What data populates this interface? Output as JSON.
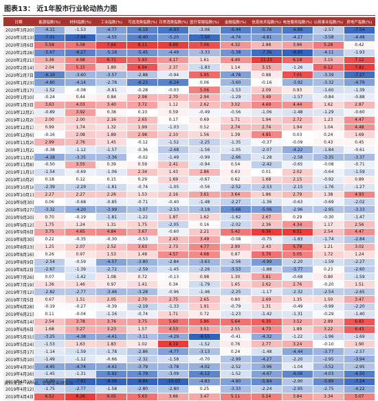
{
  "header": {
    "title": "图表13： 近1年股市行业轮动热力图"
  },
  "table": {
    "columns": [
      "日期",
      "能源指数(%)",
      "材料指数(%)",
      "工业指数(%)",
      "可选消费指数(%)",
      "日常消费指数(%)",
      "医疗保健指数(%)",
      "金融指数(%)",
      "信息技术指数(%)",
      "电信服务指数(%)",
      "公用事业指数(%)",
      "房地产指数(%)"
    ],
    "rows": [
      [
        "2020年3月20日",
        "-4.11",
        "-1.53",
        "-4.77",
        "-6.19",
        "-6.93",
        "-3.06",
        "-6.44",
        "-5.76",
        "-6.88",
        "-2.57",
        "-7.54"
      ],
      [
        "2020年3月13日",
        "-7.01",
        "-7.94",
        "-4.55",
        "-6.40",
        "-5.20",
        "-7.50",
        "-4.74",
        "-4.81",
        "-4.27",
        "-3.58",
        "-4.48"
      ],
      [
        "2020年3月6日",
        "5.58",
        "5.58",
        "7.64",
        "8.11",
        "8.89",
        "7.06",
        "4.32",
        "2.88",
        "3.96",
        "5.28",
        "0.42"
      ],
      [
        "2020年2月28日",
        "-5.67",
        "-6.27",
        "-5.18",
        "-5.45",
        "-4.49",
        "-3.33",
        "-5.38",
        "-7.36",
        "-8.85",
        "-4.11",
        "-1.93"
      ],
      [
        "2020年2月21日",
        "3.36",
        "4.98",
        "6.71",
        "5.93",
        "4.17",
        "1.61",
        "4.40",
        "11.15",
        "6.18",
        "3.15",
        "7.12"
      ],
      [
        "2020年2月14日",
        "2.04",
        "5.15",
        "1.89",
        "6.94",
        "2.37",
        "-1.83",
        "1.14",
        "3.15",
        "-1.26",
        "6.12",
        "7.82"
      ],
      [
        "2020年2月7日",
        "-6.19",
        "-3.60",
        "-3.57",
        "-2.88",
        "-0.94",
        "5.95",
        "-4.78",
        "0.88",
        "7.05",
        "-3.39",
        "-7.27"
      ],
      [
        "2020年1月23日",
        "-4.80",
        "-4.14",
        "-2.78",
        "-6.23",
        "-6.24",
        "0.06",
        "-3.60",
        "-0.16",
        "-3.92",
        "-3.32",
        "-4.79"
      ],
      [
        "2020年1月17日",
        "-1.52",
        "-0.08",
        "-0.81",
        "-0.28",
        "-0.03",
        "5.06",
        "-1.53",
        "2.09",
        "0.93",
        "-1.60",
        "-1.39"
      ],
      [
        "2020年1月10日",
        "-0.24",
        "0.44",
        "0.84",
        "2.98",
        "2.70",
        "2.94",
        "-1.29",
        "3.49",
        "-1.57",
        "-0.84",
        "-0.88"
      ],
      [
        "2020年1月3日",
        "3.63",
        "4.03",
        "3.40",
        "3.72",
        "1.12",
        "2.62",
        "3.02",
        "4.69",
        "4.44",
        "1.62",
        "2.87"
      ],
      [
        "2019年12月27日",
        "-0.89",
        "3.92",
        "0.38",
        "0.10",
        "0.59",
        "-0.49",
        "-0.56",
        "-1.06",
        "-1.48",
        "-1.29",
        "-0.60"
      ],
      [
        "2019年12月20日",
        "2.00",
        "2.00",
        "2.16",
        "2.65",
        "0.17",
        "0.69",
        "1.71",
        "1.94",
        "2.72",
        "1.23",
        "4.47"
      ],
      [
        "2019年12月13日",
        "0.99",
        "1.74",
        "1.32",
        "1.99",
        "-1.03",
        "0.52",
        "2.74",
        "2.74",
        "1.94",
        "1.04",
        "4.48"
      ],
      [
        "2019年12月6日",
        "-0.16",
        "2.08",
        "1.89",
        "2.98",
        "2.10",
        "1.56",
        "1.39",
        "4.85",
        "0.03",
        "0.24",
        "1.69"
      ],
      [
        "2019年11月29日",
        "2.99",
        "2.76",
        "1.45",
        "-0.12",
        "-1.52",
        "-2.25",
        "-1.35",
        "-0.37",
        "-0.09",
        "0.43",
        "0.45"
      ],
      [
        "2019年11月22日",
        "-0.38",
        "-1.12",
        "-1.57",
        "-0.36",
        "-2.68",
        "-1.56",
        "-1.05",
        "-2.07",
        "-4.22",
        "-1.84",
        "-0.61"
      ],
      [
        "2019年11月15日",
        "-4.18",
        "-3.35",
        "-3.36",
        "-0.02",
        "-1.49",
        "-0.99",
        "-2.66",
        "-1.28",
        "-2.58",
        "-3.35",
        "-3.37"
      ],
      [
        "2019年11月8日",
        "-0.50",
        "3.55",
        "0.39",
        "0.59",
        "2.41",
        "-0.94",
        "0.54",
        "-2.42",
        "-0.65",
        "-0.08",
        "-0.71"
      ],
      [
        "2019年11月1日",
        "-1.54",
        "-0.69",
        "-1.06",
        "2.34",
        "1.43",
        "2.86",
        "0.63",
        "0.01",
        "2.02",
        "-0.64",
        "-1.59"
      ],
      [
        "2019年10月25日",
        "0.18",
        "0.12",
        "0.15",
        "0.29",
        "1.69",
        "-0.67",
        "0.62",
        "1.68",
        "2.15",
        "-0.92",
        "0.89"
      ],
      [
        "2019年10月18日",
        "-2.39",
        "-2.29",
        "-1.81",
        "-0.74",
        "-1.05",
        "-0.56",
        "-2.52",
        "-2.53",
        "-2.15",
        "-1.76",
        "-1.27"
      ],
      [
        "2019年10月11日",
        "2.27",
        "2.27",
        "2.26",
        "1.53",
        "2.16",
        "3.61",
        "3.64",
        "1.86",
        "2.79",
        "1.38",
        "4.93"
      ],
      [
        "2019年9月30日",
        "0.06",
        "-0.68",
        "-0.85",
        "-0.71",
        "-0.40",
        "-1.48",
        "-2.27",
        "-1.36",
        "-0.63",
        "-0.69",
        "-2.02"
      ],
      [
        "2019年9月27日",
        "-3.32",
        "-4.20",
        "-3.99",
        "-3.07",
        "-2.53",
        "-3.18",
        "-5.66",
        "-5.06",
        "-2.96",
        "-2.95",
        "-3.33"
      ],
      [
        "2019年9月20日",
        "0.70",
        "-0.19",
        "-1.81",
        "-1.22",
        "1.87",
        "1.62",
        "-1.62",
        "2.67",
        "0.29",
        "-0.30",
        "-1.47"
      ],
      [
        "2019年9月12日",
        "1.75",
        "1.24",
        "1.31",
        "1.75",
        "-2.05",
        "0.16",
        "-2.02",
        "2.36",
        "4.34",
        "1.17",
        "2.56"
      ],
      [
        "2019年9月6日",
        "3.75",
        "4.65",
        "4.84",
        "3.67",
        "-0.60",
        "2.21",
        "5.42",
        "9.36",
        "8.51",
        "2.54",
        "4.47"
      ],
      [
        "2019年8月30日",
        "0.22",
        "-0.35",
        "-0.30",
        "-0.53",
        "2.43",
        "3.49",
        "-0.08",
        "-0.75",
        "-1.83",
        "-1.74",
        "-2.84"
      ],
      [
        "2019年8月23日",
        "1.25",
        "2.07",
        "2.52",
        "3.63",
        "2.73",
        "4.77",
        "2.90",
        "2.43",
        "5.79",
        "1.21",
        "3.02"
      ],
      [
        "2019年8月16日",
        "0.26",
        "0.97",
        "1.53",
        "1.48",
        "4.57",
        "4.68",
        "0.87",
        "5.70",
        "5.05",
        "1.72",
        "1.24"
      ],
      [
        "2019年8月9日",
        "-2.54",
        "-0.59",
        "-4.57",
        "-3.80",
        "-2.84",
        "-3.63",
        "-2.56",
        "-4.99",
        "-2.20",
        "-1.59",
        "-2.27"
      ],
      [
        "2019年8月2日",
        "-2.67",
        "-1.39",
        "-2.72",
        "-2.59",
        "-1.45",
        "-2.26",
        "-3.53",
        "-1.88",
        "-3.77",
        "0.23",
        "-2.60"
      ],
      [
        "2019年7月26日",
        "0.07",
        "-1.42",
        "1.08",
        "0.72",
        "-0.13",
        "0.98",
        "1.30",
        "3.81",
        "-0.68",
        "0.80",
        "-1.59"
      ],
      [
        "2019年7月19日",
        "1.36",
        "1.46",
        "0.97",
        "1.41",
        "0.34",
        "-1.79",
        "1.65",
        "2.62",
        "2.76",
        "-0.20",
        "1.51"
      ],
      [
        "2019年7月12日",
        "-2.82",
        "-2.77",
        "-3.46",
        "-3.28",
        "-0.96",
        "-1.46",
        "-2.25",
        "-1.17",
        "-2.32",
        "-2.54",
        "-2.65"
      ],
      [
        "2019年7月5日",
        "0.67",
        "1.51",
        "2.05",
        "2.70",
        "2.75",
        "2.65",
        "0.80",
        "2.69",
        "1.35",
        "1.50",
        "3.47"
      ],
      [
        "2019年6月28日",
        "-0.19",
        "-0.27",
        "-0.39",
        "-2.19",
        "-1.33",
        "1.91",
        "-0.79",
        "1.31",
        "-0.49",
        "-0.99",
        "-2.20"
      ],
      [
        "2019年6月21日",
        "0.11",
        "-0.04",
        "-1.16",
        "-0.74",
        "1.71",
        "0.72",
        "-1.23",
        "-1.42",
        "-1.31",
        "-0.29",
        "-1.40"
      ],
      [
        "2019年6月14日",
        "2.54",
        "3.78",
        "3.76",
        "3.75",
        "5.60",
        "5.86",
        "5.64",
        "6.30",
        "3.52",
        "2.89",
        "6.83"
      ],
      [
        "2019年6月6日",
        "1.68",
        "3.27",
        "3.23",
        "1.57",
        "4.53",
        "3.51",
        "2.55",
        "4.73",
        "1.89",
        "3.22",
        "6.43"
      ],
      [
        "2019年5月31日",
        "-3.25",
        "-4.38",
        "-4.41",
        "-3.11",
        "-4.29",
        "-8.55",
        "-0.41",
        "-4.32",
        "-1.22",
        "-1.96",
        "-1.69"
      ],
      [
        "2019年5月24日",
        "-1.53",
        "1.63",
        "1.83",
        "1.02",
        "8.19",
        "-1.52",
        "0.76",
        "2.77",
        "3.24",
        "-0.10",
        "1.90"
      ],
      [
        "2019年5月17日",
        "-1.14",
        "-1.59",
        "-1.78",
        "-2.86",
        "-4.77",
        "-3.13",
        "0.24",
        "-1.48",
        "-4.44",
        "-3.77",
        "-2.57"
      ],
      [
        "2019年5月10日",
        "-1.49",
        "-1.12",
        "-0.66",
        "-2.32",
        "-1.58",
        "-0.70",
        "-2.99",
        "-4.27",
        "-2.20",
        "-2.95",
        "-3.94"
      ],
      [
        "2019年4月30日",
        "-4.45",
        "-4.74",
        "-4.41",
        "-3.79",
        "-3.78",
        "-4.02",
        "-2.52",
        "-3.96",
        "-1.04",
        "-3.52",
        "-2.95"
      ],
      [
        "2019年4月26日",
        "-1.45",
        "-1.31",
        "-5.92",
        "-5.79",
        "-3.09",
        "-6.12",
        "-1.52",
        "-4.67",
        "-6.06",
        "-4.03",
        "-6.50"
      ],
      [
        "2019年4月19日",
        "-5.99",
        "-7.81",
        "-8.06",
        "-8.84",
        "-10.03",
        "-4.83",
        "-4.80",
        "-5.84",
        "-2.90",
        "-5.89",
        "-7.24"
      ],
      [
        "2019年4月12日",
        "-1.75",
        "-2.77",
        "-1.58",
        "-2.80",
        "-2.80",
        "0.25",
        "-3.33",
        "-2.24",
        "-2.95",
        "-2.75",
        "-4.22"
      ],
      [
        "2019年4月4日",
        "6.52",
        "8.26",
        "6.05",
        "5.63",
        "3.66",
        "3.47",
        "5.11",
        "5.14",
        "3.84",
        "3.34",
        "5.07"
      ]
    ]
  },
  "footer": "资料来源：Wind，华泰证券研究所"
}
